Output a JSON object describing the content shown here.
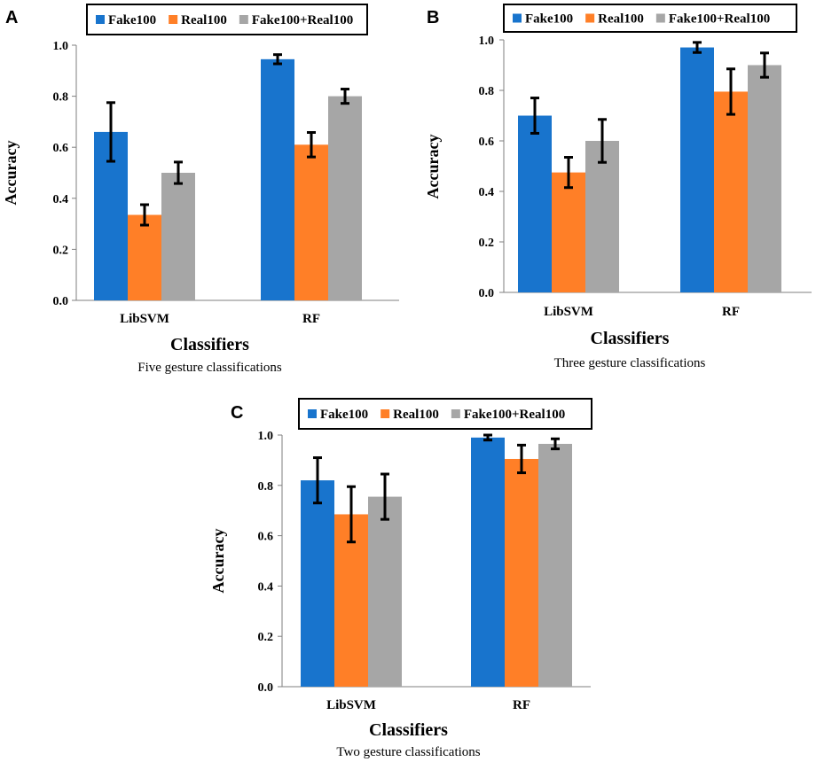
{
  "colors": {
    "series": [
      "#1874cd",
      "#ff7f27",
      "#a6a6a6"
    ],
    "axis": "#7f7f7f",
    "error_bar": "#000000"
  },
  "chart_data": [
    {
      "panel": "A",
      "type": "bar",
      "title": "Five gesture classifications",
      "xlabel": "Classifiers",
      "ylabel": "Accuracy",
      "ylim": [
        0,
        1.0
      ],
      "yticks": [
        "0.0",
        "0.2",
        "0.4",
        "0.6",
        "0.8",
        "1.0"
      ],
      "categories": [
        "LibSVM",
        "RF"
      ],
      "legend": "top",
      "series": [
        {
          "name": "Fake100",
          "values": [
            0.66,
            0.945
          ],
          "errors": [
            0.115,
            0.018
          ]
        },
        {
          "name": "Real100",
          "values": [
            0.335,
            0.61
          ],
          "errors": [
            0.04,
            0.048
          ]
        },
        {
          "name": "Fake100+Real100",
          "values": [
            0.5,
            0.8
          ],
          "errors": [
            0.042,
            0.028
          ]
        }
      ]
    },
    {
      "panel": "B",
      "type": "bar",
      "title": "Three gesture classifications",
      "xlabel": "Classifiers",
      "ylabel": "Accuracy",
      "ylim": [
        0,
        1.0
      ],
      "yticks": [
        "0.0",
        "0.2",
        "0.4",
        "0.6",
        "0.8",
        "1.0"
      ],
      "categories": [
        "LibSVM",
        "RF"
      ],
      "legend": "top",
      "series": [
        {
          "name": "Fake100",
          "values": [
            0.7,
            0.97
          ],
          "errors": [
            0.07,
            0.02
          ]
        },
        {
          "name": "Real100",
          "values": [
            0.475,
            0.795
          ],
          "errors": [
            0.06,
            0.09
          ]
        },
        {
          "name": "Fake100+Real100",
          "values": [
            0.6,
            0.9
          ],
          "errors": [
            0.085,
            0.048
          ]
        }
      ]
    },
    {
      "panel": "C",
      "type": "bar",
      "title": "Two gesture classifications",
      "xlabel": "Classifiers",
      "ylabel": "Accuracy",
      "ylim": [
        0,
        1.0
      ],
      "yticks": [
        "0.0",
        "0.2",
        "0.4",
        "0.6",
        "0.8",
        "1.0"
      ],
      "categories": [
        "LibSVM",
        "RF"
      ],
      "legend": "top",
      "series": [
        {
          "name": "Fake100",
          "values": [
            0.82,
            0.99
          ],
          "errors": [
            0.09,
            0.01
          ]
        },
        {
          "name": "Real100",
          "values": [
            0.685,
            0.905
          ],
          "errors": [
            0.11,
            0.055
          ]
        },
        {
          "name": "Fake100+Real100",
          "values": [
            0.755,
            0.965
          ],
          "errors": [
            0.09,
            0.02
          ]
        }
      ]
    }
  ]
}
